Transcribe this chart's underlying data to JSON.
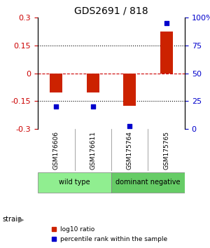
{
  "title": "GDS2691 / 818",
  "samples": [
    "GSM176606",
    "GSM176611",
    "GSM175764",
    "GSM175765"
  ],
  "log10_ratio": [
    -0.105,
    -0.105,
    -0.175,
    0.225
  ],
  "percentile_rank": [
    20,
    20,
    3,
    95
  ],
  "groups": [
    {
      "label": "wild type",
      "indices": [
        0,
        1
      ],
      "color": "#90EE90"
    },
    {
      "label": "dominant negative",
      "indices": [
        2,
        3
      ],
      "color": "#66CC66"
    }
  ],
  "ylim_left": [
    -0.3,
    0.3
  ],
  "ylim_right": [
    0,
    100
  ],
  "yticks_left": [
    -0.3,
    -0.15,
    0,
    0.15,
    0.3
  ],
  "yticks_right": [
    0,
    25,
    50,
    75,
    100
  ],
  "ytick_labels_right": [
    "0",
    "25",
    "50",
    "75",
    "100%"
  ],
  "hlines_dotted": [
    -0.15,
    0.15
  ],
  "hline_red_dashed": 0,
  "bar_color": "#CC2200",
  "dot_color": "#0000CC",
  "bar_width": 0.35,
  "legend_red_label": "log10 ratio",
  "legend_blue_label": "percentile rank within the sample",
  "strain_label": "strain",
  "left_axis_color": "#CC0000",
  "right_axis_color": "#0000CC"
}
